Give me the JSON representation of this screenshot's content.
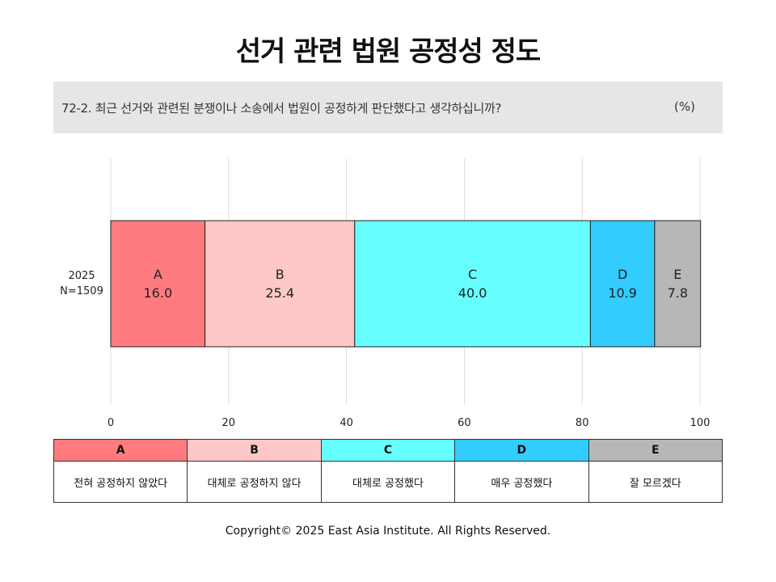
{
  "page": {
    "title": "선거 관련 법원 공정성 정도",
    "question": "72-2. 최근 선거와 관련된 분쟁이나 소송에서 법원이 공정하게 판단했다고 생각하십니까?",
    "unit": "(%)",
    "copyright": "Copyright© 2025 East Asia Institute. All Rights Reserved."
  },
  "chart_data": {
    "type": "bar",
    "orientation": "horizontal",
    "stacked": true,
    "category_label": "2025",
    "sample_size": "N=1509",
    "xlim": [
      0,
      100
    ],
    "xticks": [
      "0",
      "20",
      "40",
      "60",
      "80",
      "100"
    ],
    "grid": true,
    "series": [
      {
        "name": "A",
        "value": 16.0,
        "label": "16.0",
        "color": "#ff7b7f"
      },
      {
        "name": "B",
        "value": 25.4,
        "label": "25.4",
        "color": "#ffc8c8"
      },
      {
        "name": "C",
        "value": 40.0,
        "label": "40.0",
        "color": "#66ffff"
      },
      {
        "name": "D",
        "value": 10.9,
        "label": "10.9",
        "color": "#33ccff"
      },
      {
        "name": "E",
        "value": 7.8,
        "label": "7.8",
        "color": "#b8b6b6"
      }
    ]
  },
  "legend": [
    {
      "key": "A",
      "text": "전혀 공정하지 않았다",
      "color": "#ff7b7f"
    },
    {
      "key": "B",
      "text": "대체로 공정하지 않다",
      "color": "#ffc8c8"
    },
    {
      "key": "C",
      "text": "대체로 공정했다",
      "color": "#66ffff"
    },
    {
      "key": "D",
      "text": "매우 공정했다",
      "color": "#33ccff"
    },
    {
      "key": "E",
      "text": "잘 모르겠다",
      "color": "#b8b6b6"
    }
  ]
}
